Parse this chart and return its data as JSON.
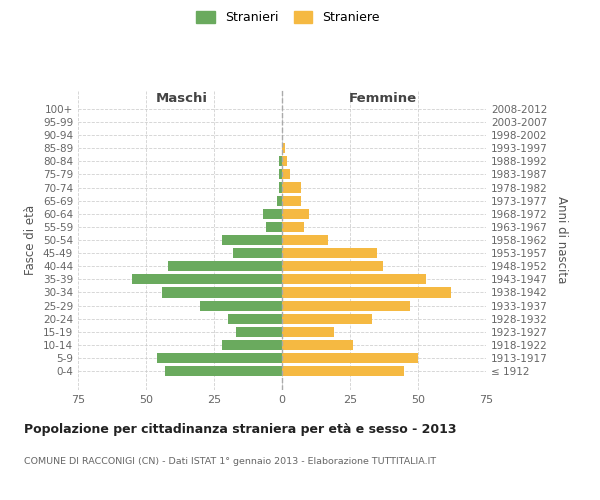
{
  "age_groups": [
    "100+",
    "95-99",
    "90-94",
    "85-89",
    "80-84",
    "75-79",
    "70-74",
    "65-69",
    "60-64",
    "55-59",
    "50-54",
    "45-49",
    "40-44",
    "35-39",
    "30-34",
    "25-29",
    "20-24",
    "15-19",
    "10-14",
    "5-9",
    "0-4"
  ],
  "birth_years": [
    "≤ 1912",
    "1913-1917",
    "1918-1922",
    "1923-1927",
    "1928-1932",
    "1933-1937",
    "1938-1942",
    "1943-1947",
    "1948-1952",
    "1953-1957",
    "1958-1962",
    "1963-1967",
    "1968-1972",
    "1973-1977",
    "1978-1982",
    "1983-1987",
    "1988-1992",
    "1993-1997",
    "1998-2002",
    "2003-2007",
    "2008-2012"
  ],
  "maschi": [
    0,
    0,
    0,
    0,
    1,
    1,
    1,
    2,
    7,
    6,
    22,
    18,
    42,
    55,
    44,
    30,
    20,
    17,
    22,
    46,
    43
  ],
  "femmine": [
    0,
    0,
    0,
    1,
    2,
    3,
    7,
    7,
    10,
    8,
    17,
    35,
    37,
    53,
    62,
    47,
    33,
    19,
    26,
    50,
    45
  ],
  "maschi_color": "#6aaa5e",
  "femmine_color": "#f5b942",
  "background_color": "#ffffff",
  "grid_color": "#cccccc",
  "title": "Popolazione per cittadinanza straniera per età e sesso - 2013",
  "subtitle": "COMUNE DI RACCONIGI (CN) - Dati ISTAT 1° gennaio 2013 - Elaborazione TUTTITALIA.IT",
  "ylabel_left": "Fasce di età",
  "ylabel_right": "Anni di nascita",
  "xlabel_maschi": "Maschi",
  "xlabel_femmine": "Femmine",
  "legend_maschi": "Stranieri",
  "legend_femmine": "Straniere",
  "xlim": 75
}
